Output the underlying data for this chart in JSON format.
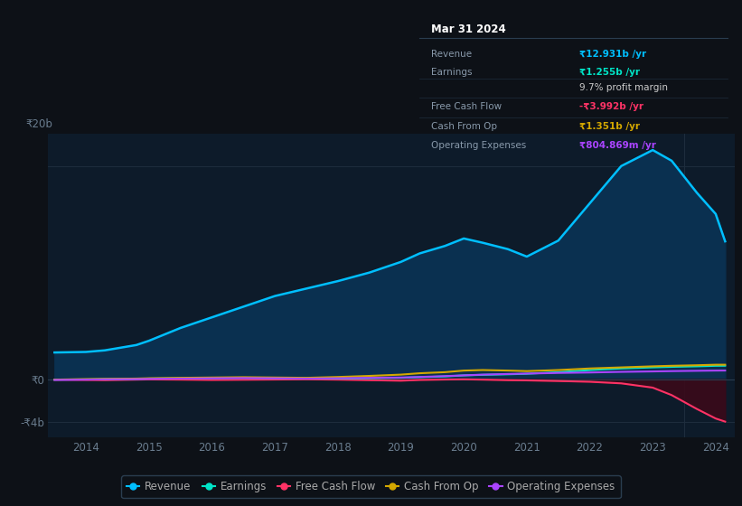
{
  "bg_color": "#0d1117",
  "plot_bg_color": "#0d1b2a",
  "grid_color": "#1e2d3d",
  "years": [
    2013.5,
    2014,
    2014.3,
    2014.8,
    2015,
    2015.5,
    2016,
    2016.5,
    2017,
    2017.5,
    2018,
    2018.5,
    2019,
    2019.3,
    2019.7,
    2020,
    2020.3,
    2020.7,
    2021,
    2021.5,
    2022,
    2022.5,
    2023,
    2023.3,
    2023.7,
    2024,
    2024.15
  ],
  "revenue": [
    2.5,
    2.55,
    2.7,
    3.2,
    3.6,
    4.8,
    5.8,
    6.8,
    7.8,
    8.5,
    9.2,
    10.0,
    11.0,
    11.8,
    12.5,
    13.2,
    12.8,
    12.2,
    11.5,
    13.0,
    16.5,
    20.0,
    21.5,
    20.5,
    17.5,
    15.5,
    12.931
  ],
  "earnings": [
    -0.05,
    -0.03,
    0.0,
    0.02,
    0.05,
    0.08,
    0.1,
    0.12,
    0.1,
    0.08,
    0.05,
    0.08,
    0.12,
    0.18,
    0.25,
    0.35,
    0.4,
    0.45,
    0.5,
    0.65,
    0.85,
    1.0,
    1.1,
    1.15,
    1.2,
    1.25,
    1.255
  ],
  "free_cash_flow": [
    -0.05,
    -0.08,
    -0.1,
    -0.05,
    -0.03,
    -0.05,
    -0.08,
    -0.06,
    -0.04,
    -0.02,
    -0.05,
    -0.1,
    -0.15,
    -0.08,
    -0.04,
    -0.02,
    -0.05,
    -0.1,
    -0.12,
    -0.18,
    -0.25,
    -0.4,
    -0.8,
    -1.5,
    -2.8,
    -3.7,
    -3.992
  ],
  "cash_from_op": [
    -0.05,
    0.0,
    0.02,
    0.05,
    0.08,
    0.12,
    0.15,
    0.18,
    0.15,
    0.12,
    0.2,
    0.3,
    0.42,
    0.55,
    0.65,
    0.8,
    0.85,
    0.8,
    0.75,
    0.85,
    1.0,
    1.1,
    1.2,
    1.25,
    1.3,
    1.35,
    1.351
  ],
  "op_expenses": [
    -0.08,
    -0.05,
    -0.02,
    0.0,
    0.02,
    0.05,
    0.08,
    0.1,
    0.08,
    0.05,
    0.08,
    0.12,
    0.15,
    0.2,
    0.28,
    0.35,
    0.42,
    0.48,
    0.52,
    0.58,
    0.62,
    0.68,
    0.72,
    0.75,
    0.78,
    0.8,
    0.805
  ],
  "revenue_color": "#00bfff",
  "earnings_color": "#00e5c8",
  "fcf_color": "#ff3366",
  "cashop_color": "#d4a800",
  "opex_color": "#aa44ff",
  "revenue_fill_color": "#0a3050",
  "fcf_fill_color": "#3a0a1a",
  "ylim_min": -5.5,
  "ylim_max": 23,
  "yticks": [
    -4,
    0,
    20
  ],
  "ytick_labels": [
    "-₹4b",
    "₹0",
    "₹20b"
  ],
  "xtick_labels": [
    "2014",
    "2015",
    "2016",
    "2017",
    "2018",
    "2019",
    "2020",
    "2021",
    "2022",
    "2023",
    "2024"
  ],
  "xtick_values": [
    2014,
    2015,
    2016,
    2017,
    2018,
    2019,
    2020,
    2021,
    2022,
    2023,
    2024
  ],
  "legend_items": [
    "Revenue",
    "Earnings",
    "Free Cash Flow",
    "Cash From Op",
    "Operating Expenses"
  ],
  "legend_colors": [
    "#00bfff",
    "#00e5c8",
    "#ff3366",
    "#d4a800",
    "#aa44ff"
  ],
  "tooltip_title": "Mar 31 2024",
  "tooltip_bg": "#0a0e14",
  "tooltip_rows": [
    {
      "label": "Revenue",
      "value": "₹12.931b /yr",
      "color": "#00bfff"
    },
    {
      "label": "Earnings",
      "value": "₹1.255b /yr",
      "color": "#00e5c8"
    },
    {
      "label": "",
      "value": "9.7% profit margin",
      "color": "#cccccc"
    },
    {
      "label": "Free Cash Flow",
      "value": "-₹3.992b /yr",
      "color": "#ff3366"
    },
    {
      "label": "Cash From Op",
      "value": "₹1.351b /yr",
      "color": "#d4a800"
    },
    {
      "label": "Operating Expenses",
      "value": "₹804.869m /yr",
      "color": "#aa44ff"
    }
  ]
}
